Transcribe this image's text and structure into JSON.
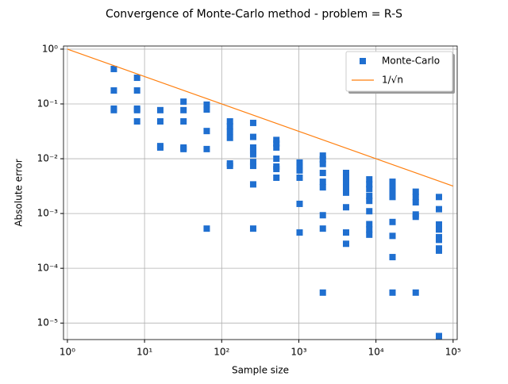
{
  "chart_data": {
    "type": "scatter",
    "title": "Convergence of Monte-Carlo method - problem = R-S",
    "xlabel": "Sample size",
    "ylabel": "Absolute error",
    "xlog": true,
    "ylog": true,
    "grid": true,
    "legend": "upper right",
    "xlim": [
      0.89,
      113000
    ],
    "ylim": [
      5e-06,
      1.14
    ],
    "xticks": [
      {
        "value": 1,
        "label": "10⁰"
      },
      {
        "value": 10,
        "label": "10¹"
      },
      {
        "value": 100,
        "label": "10²"
      },
      {
        "value": 1000,
        "label": "10³"
      },
      {
        "value": 10000,
        "label": "10⁴"
      },
      {
        "value": 100000,
        "label": "10⁵"
      }
    ],
    "yticks": [
      {
        "value": 1e-05,
        "label": "10⁻⁵"
      },
      {
        "value": 0.0001,
        "label": "10⁻⁴"
      },
      {
        "value": 0.001,
        "label": "10⁻³"
      },
      {
        "value": 0.01,
        "label": "10⁻²"
      },
      {
        "value": 0.1,
        "label": "10⁻¹"
      },
      {
        "value": 1,
        "label": "10⁰"
      }
    ],
    "series": [
      {
        "name": "Monte-Carlo",
        "style": "scatter",
        "color": "#1f6fd0",
        "x": [
          4,
          4,
          4,
          4,
          8,
          8,
          8,
          8,
          8,
          16,
          16,
          16,
          16,
          32,
          32,
          32,
          32,
          32,
          64,
          64,
          64,
          64,
          64,
          128,
          128,
          128,
          128,
          128,
          128,
          256,
          256,
          256,
          256,
          256,
          256,
          256,
          256,
          256,
          512,
          512,
          512,
          512,
          512,
          512,
          512,
          1024,
          1024,
          1024,
          1024,
          1024,
          1024,
          2048,
          2048,
          2048,
          2048,
          2048,
          2048,
          2048,
          2048,
          2048,
          4096,
          4096,
          4096,
          4096,
          4096,
          4096,
          4096,
          4096,
          8192,
          8192,
          8192,
          8192,
          8192,
          8192,
          8192,
          8192,
          8192,
          16384,
          16384,
          16384,
          16384,
          16384,
          16384,
          16384,
          16384,
          32768,
          32768,
          32768,
          32768,
          32768,
          32768,
          65536,
          65536,
          65536,
          65536,
          65536,
          65536,
          65536,
          65536,
          65536
        ],
        "values": [
          0.434,
          0.176,
          0.082,
          0.077,
          0.3,
          0.176,
          0.082,
          0.077,
          0.048,
          0.077,
          0.048,
          0.017,
          0.016,
          0.11,
          0.077,
          0.048,
          0.016,
          0.015,
          0.097,
          0.079,
          0.032,
          0.015,
          0.00053,
          0.048,
          0.039,
          0.031,
          0.024,
          0.0082,
          0.0074,
          0.045,
          0.025,
          0.016,
          0.014,
          0.012,
          0.0087,
          0.0074,
          0.0034,
          0.00053,
          0.022,
          0.019,
          0.016,
          0.01,
          0.0072,
          0.0065,
          0.0045,
          0.0085,
          0.0072,
          0.0061,
          0.0045,
          0.0015,
          0.00045,
          0.0114,
          0.0097,
          0.008,
          0.0055,
          0.0038,
          0.003,
          0.00093,
          0.00053,
          3.6e-05,
          0.0055,
          0.0045,
          0.0037,
          0.003,
          0.0024,
          0.0013,
          0.00045,
          0.00028,
          0.0042,
          0.0034,
          0.0028,
          0.0021,
          0.0017,
          0.0011,
          0.00064,
          0.00051,
          0.00041,
          0.0038,
          0.0031,
          0.0025,
          0.002,
          0.0007,
          0.00039,
          0.00016,
          3.6e-05,
          0.0025,
          0.002,
          0.0016,
          0.00096,
          0.00087,
          3.6e-05,
          0.002,
          0.0012,
          0.00063,
          0.00051,
          0.00037,
          0.00033,
          0.00023,
          0.00021,
          5.8e-06
        ]
      },
      {
        "name": "1/√n",
        "style": "line",
        "color": "#ff7f0e",
        "x": [
          1,
          100000
        ],
        "values": [
          1,
          0.0031623
        ]
      }
    ]
  }
}
